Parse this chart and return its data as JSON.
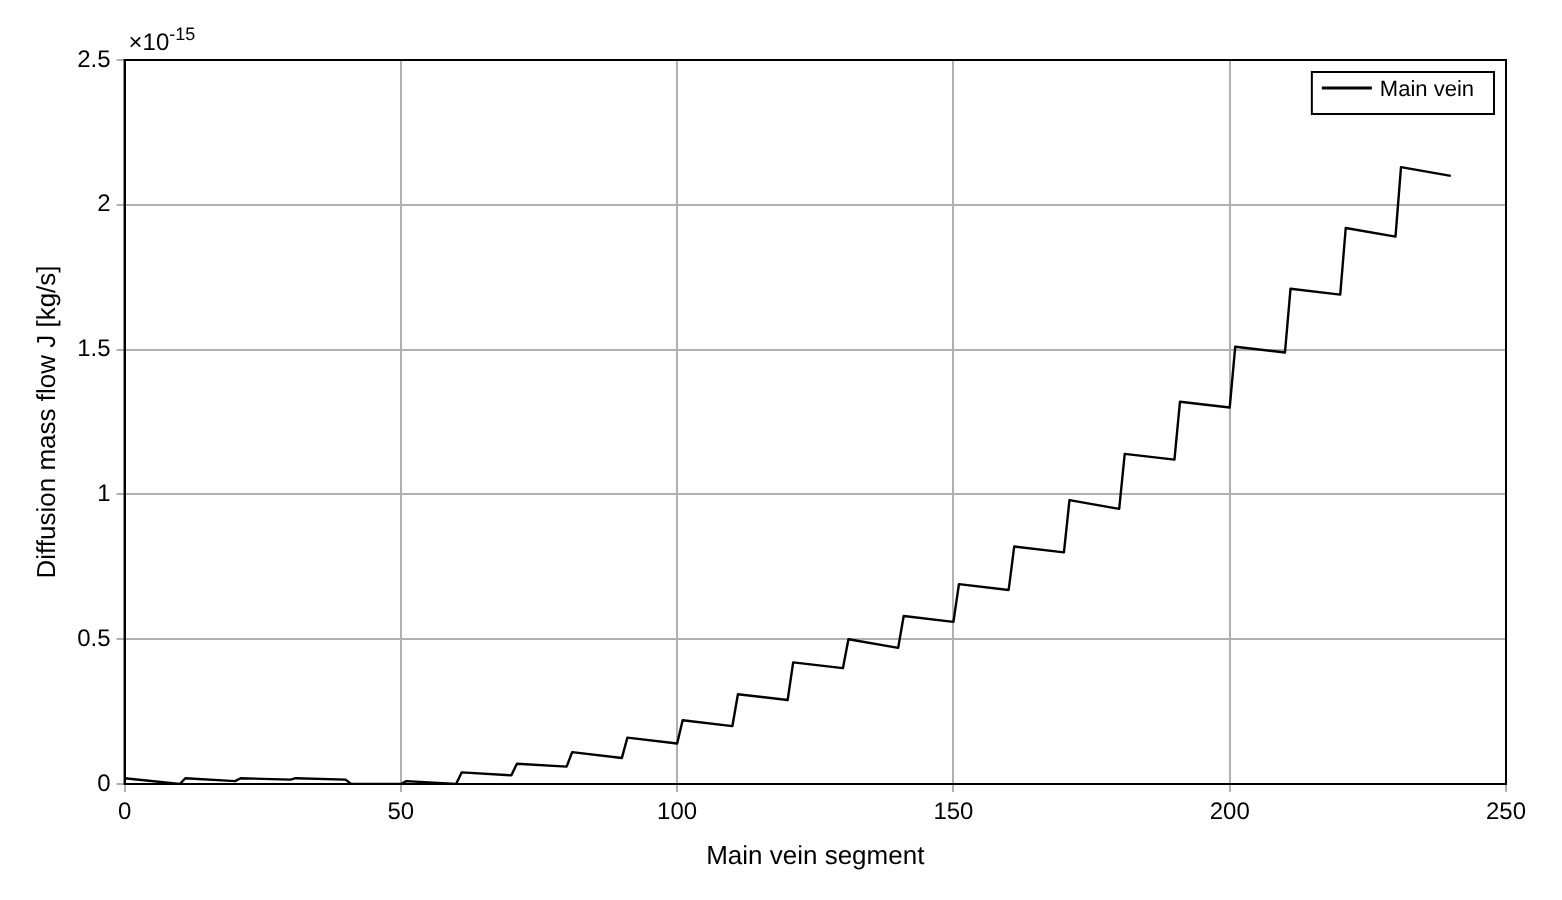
{
  "chart_data": {
    "type": "line",
    "xlabel": "Main vein segment",
    "ylabel": "Diffusion mass flow J [kg/s]",
    "annotations": [
      "×10$^{-15}$"
    ],
    "x": [
      0,
      10,
      11,
      20,
      21,
      30,
      31,
      40,
      41,
      50,
      51,
      60,
      61,
      70,
      71,
      80,
      81,
      90,
      91,
      100,
      101,
      110,
      111,
      120,
      121,
      130,
      131,
      140,
      141,
      150,
      151,
      160,
      161,
      170,
      171,
      180,
      181,
      190,
      191,
      200,
      201,
      210,
      211,
      220,
      221,
      230,
      231,
      240
    ],
    "series": [
      {
        "name": "Main vein",
        "color": "#000000",
        "values": [
          0.02,
          0.0,
          0.02,
          0.01,
          0.02,
          0.015,
          0.02,
          0.015,
          0.0,
          0.0,
          0.01,
          0.0,
          0.04,
          0.03,
          0.07,
          0.06,
          0.11,
          0.09,
          0.16,
          0.14,
          0.22,
          0.2,
          0.31,
          0.29,
          0.42,
          0.4,
          0.5,
          0.47,
          0.58,
          0.56,
          0.69,
          0.67,
          0.82,
          0.8,
          0.98,
          0.95,
          1.14,
          1.12,
          1.32,
          1.3,
          1.51,
          1.49,
          1.71,
          1.69,
          1.92,
          1.89,
          2.13,
          2.1
        ]
      }
    ],
    "xlim": [
      0,
      250
    ],
    "xticks": [
      0,
      50,
      100,
      150,
      200,
      250
    ],
    "ylim": [
      0,
      2.5
    ],
    "yticks": [
      0,
      0.5,
      1,
      1.5,
      2,
      2.5
    ],
    "grid": true,
    "legend": "top right",
    "marker": "none",
    "line_style": "solid"
  }
}
